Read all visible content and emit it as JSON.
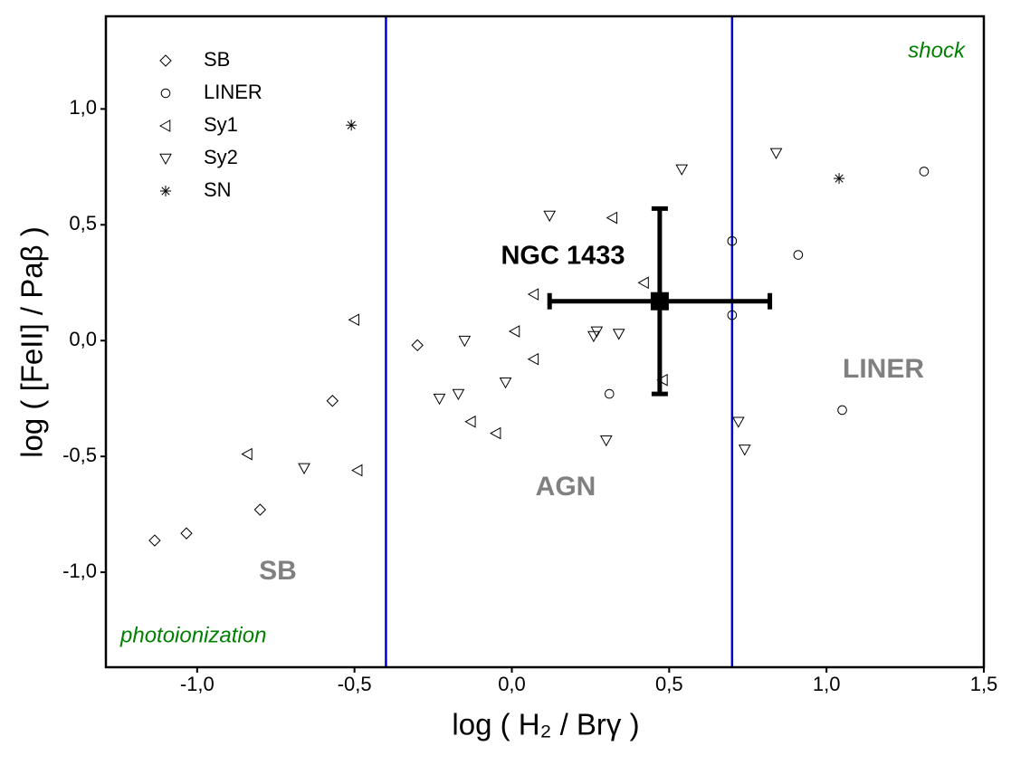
{
  "chart_data": {
    "type": "scatter",
    "xlabel": "log ( H₂ / Brγ )",
    "ylabel": "log ( [FeII] / Paβ )",
    "xlim": [
      -1.29,
      1.5
    ],
    "ylim": [
      -1.41,
      1.4
    ],
    "xticks": [
      {
        "value": -1.0,
        "label": "-1,0"
      },
      {
        "value": -0.5,
        "label": "-0,5"
      },
      {
        "value": 0.0,
        "label": "0,0"
      },
      {
        "value": 0.5,
        "label": "0,5"
      },
      {
        "value": 1.0,
        "label": "1,0"
      },
      {
        "value": 1.5,
        "label": "1,5"
      }
    ],
    "yticks": [
      {
        "value": -1.0,
        "label": "-1,0"
      },
      {
        "value": -0.5,
        "label": "-0,5"
      },
      {
        "value": 0.0,
        "label": "0,0"
      },
      {
        "value": 0.5,
        "label": "0,5"
      },
      {
        "value": 1.0,
        "label": "1,0"
      }
    ],
    "vlines": [
      -0.4,
      0.7
    ],
    "vline_color": "#0000cc",
    "legend": "upper left",
    "series": [
      {
        "name": "SB",
        "color": "#000000",
        "marker": "diamond",
        "x": [
          -1.135,
          -1.034,
          -0.8,
          -0.57,
          -0.3
        ],
        "values": [
          -0.863,
          -0.832,
          -0.73,
          -0.26,
          -0.02
        ]
      },
      {
        "name": "LINER",
        "color": "#000000",
        "marker": "circle",
        "x": [
          1.31,
          0.7,
          0.91,
          0.7,
          0.31,
          1.05
        ],
        "values": [
          0.73,
          0.43,
          0.37,
          0.11,
          -0.23,
          -0.3
        ]
      },
      {
        "name": "Sy1",
        "color": "#000000",
        "marker": "triangle-left",
        "x": [
          -0.84,
          -0.5,
          -0.49,
          -0.13,
          -0.05,
          0.01,
          0.07,
          0.07,
          0.32,
          0.42,
          0.48
        ],
        "values": [
          -0.49,
          0.09,
          -0.56,
          -0.35,
          -0.4,
          0.04,
          -0.08,
          0.2,
          0.53,
          0.25,
          -0.17
        ]
      },
      {
        "name": "Sy2",
        "color": "#000000",
        "marker": "triangle-down",
        "x": [
          -0.66,
          -0.23,
          -0.17,
          -0.15,
          -0.02,
          0.12,
          0.26,
          0.27,
          0.34,
          0.3,
          0.54,
          0.84,
          0.72,
          0.74
        ],
        "values": [
          -0.55,
          -0.25,
          -0.23,
          0.0,
          -0.18,
          0.54,
          0.02,
          0.04,
          0.03,
          -0.43,
          0.74,
          0.81,
          -0.35,
          -0.47
        ]
      },
      {
        "name": "SN",
        "color": "#000000",
        "marker": "star",
        "x": [
          -0.51,
          1.04
        ],
        "values": [
          0.93,
          0.7
        ]
      }
    ],
    "highlight": {
      "name": "NGC 1433",
      "x": 0.47,
      "y": 0.17,
      "xerr": 0.35,
      "yerr": 0.4,
      "color": "#000000"
    },
    "region_labels": [
      "SB",
      "AGN",
      "LINER"
    ],
    "region_color": "#808080",
    "mechanism_labels": [
      "shock",
      "photoionization"
    ],
    "mechanism_color": "#008000"
  }
}
